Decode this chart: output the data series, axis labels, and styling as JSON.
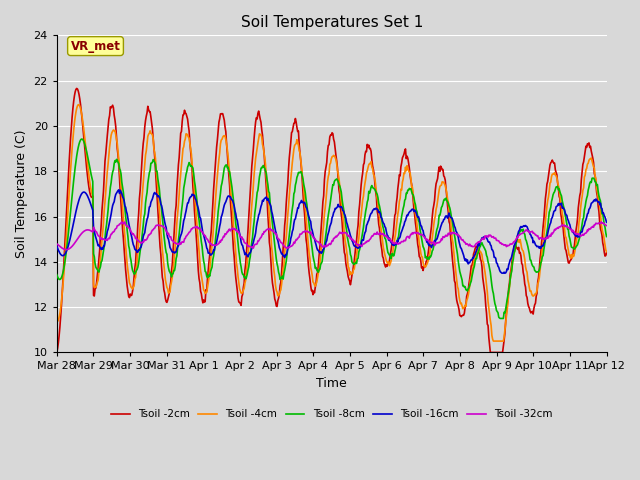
{
  "title": "Soil Temperatures Set 1",
  "xlabel": "Time",
  "ylabel": "Soil Temperature (C)",
  "ylim": [
    10,
    24
  ],
  "yticks": [
    10,
    12,
    14,
    16,
    18,
    20,
    22,
    24
  ],
  "background_color": "#d8d8d8",
  "plot_bg_color": "#d8d8d8",
  "grid_color": "#ffffff",
  "series_colors": [
    "#cc0000",
    "#ff8800",
    "#00bb00",
    "#0000cc",
    "#cc00cc"
  ],
  "series_labels": [
    "Tsoil -2cm",
    "Tsoil -4cm",
    "Tsoil -8cm",
    "Tsoil -16cm",
    "Tsoil -32cm"
  ],
  "series_linewidths": [
    1.2,
    1.2,
    1.2,
    1.2,
    1.2
  ],
  "annotation_text": "VR_met",
  "annotation_bg": "#ffff99",
  "annotation_border": "#999900",
  "n_points": 720,
  "x_start_day": 0.0,
  "x_end_day": 15.0,
  "xtick_positions": [
    0,
    1,
    2,
    3,
    4,
    5,
    6,
    7,
    8,
    9,
    10,
    11,
    12,
    13,
    14,
    15
  ],
  "xtick_labels": [
    "Mar 28",
    "Mar 29",
    "Mar 30",
    "Mar 31",
    "Apr 1",
    "Apr 2",
    "Apr 3",
    "Apr 4",
    "Apr 5",
    "Apr 6",
    "Apr 7",
    "Apr 8",
    "Apr 9",
    "Apr 10",
    "Apr 11",
    "Apr 12"
  ]
}
